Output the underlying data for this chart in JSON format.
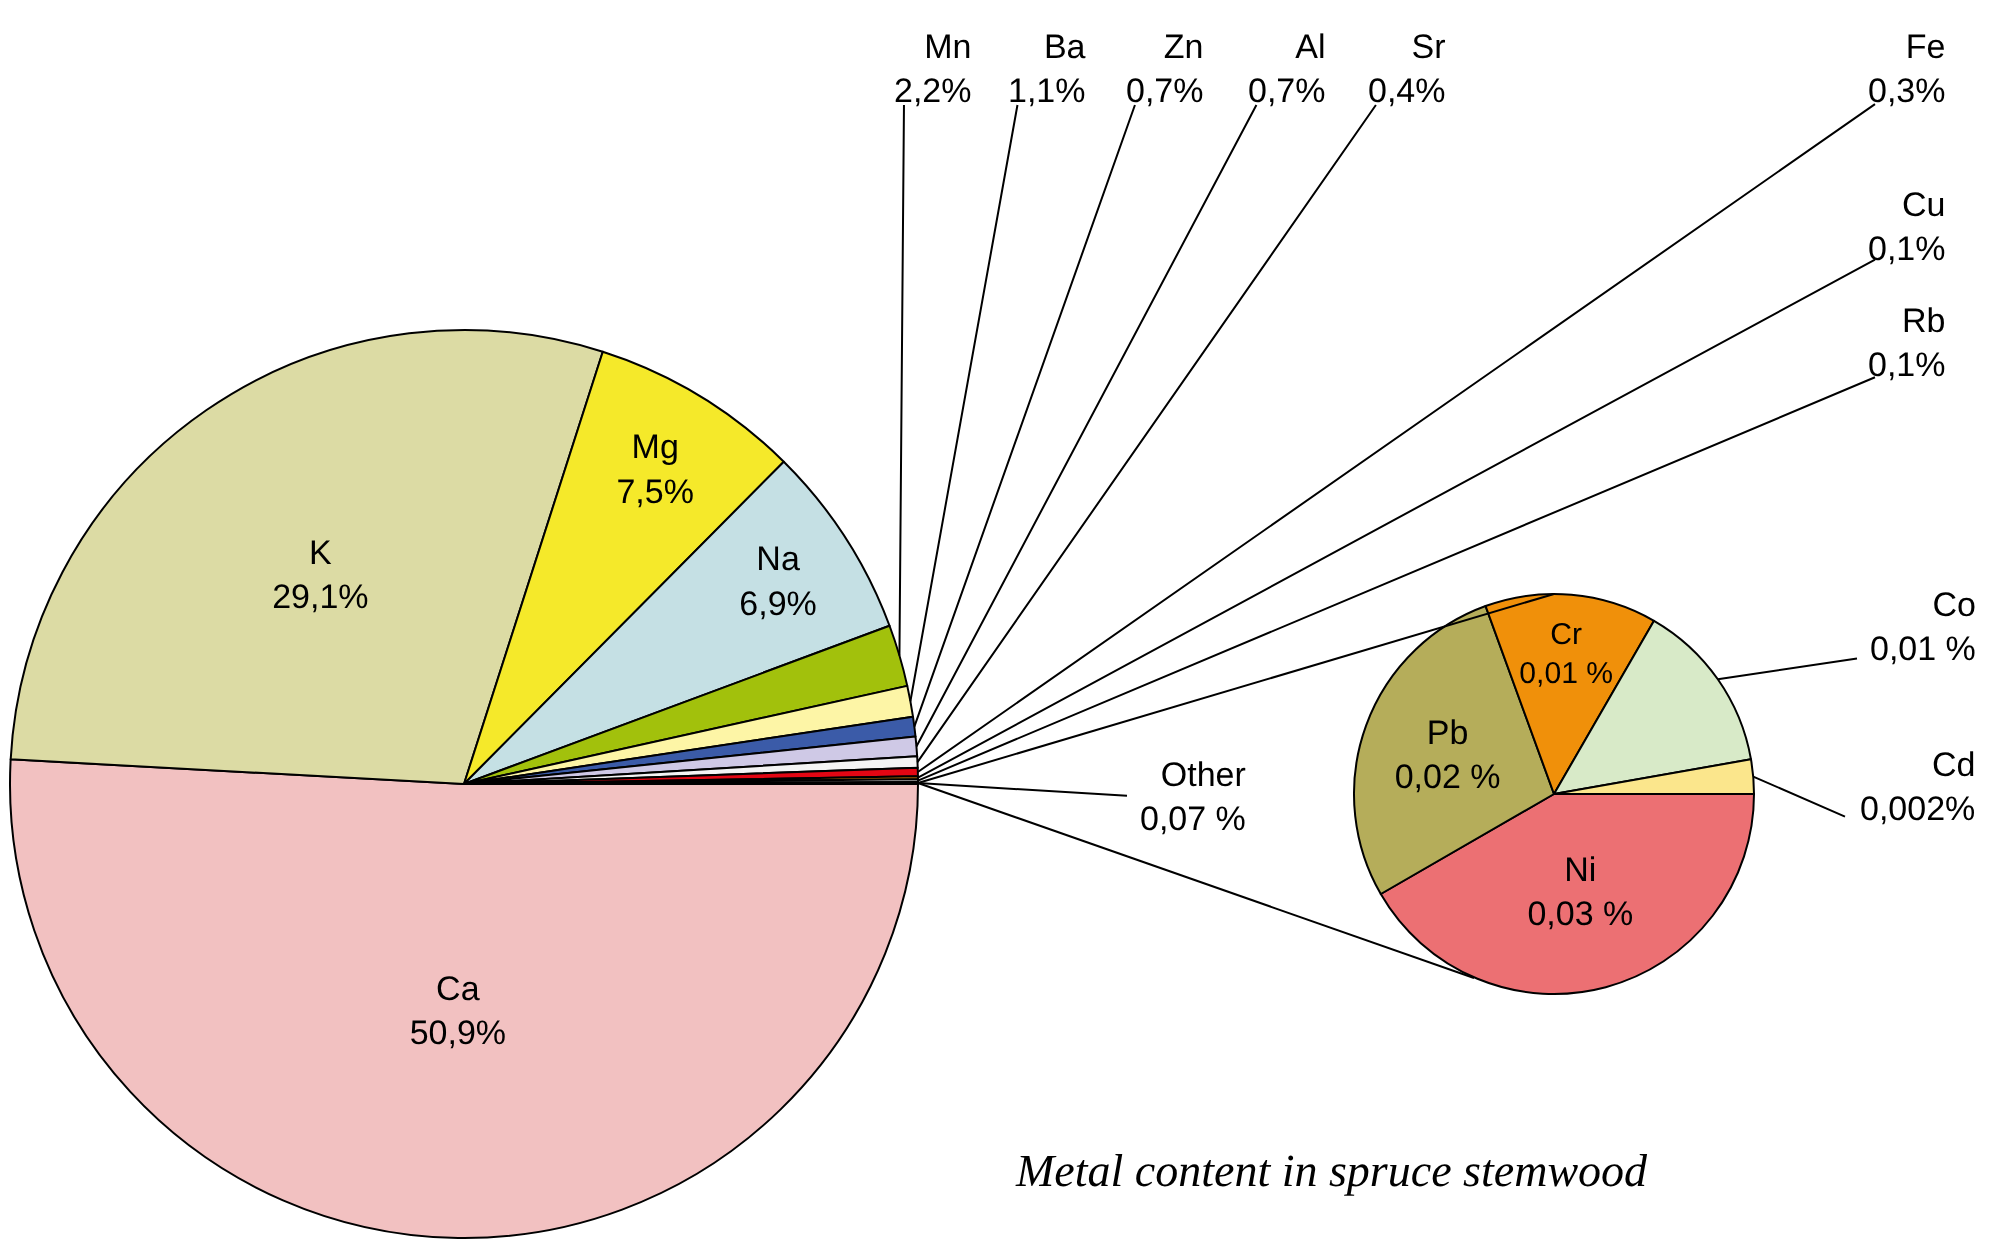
{
  "chart_data": [
    {
      "type": "pie",
      "title": "Metal content in spruce stemwood",
      "categories": [
        "Ca",
        "K",
        "Mg",
        "Na",
        "Mn",
        "Ba",
        "Zn",
        "Al",
        "Sr",
        "Fe",
        "Cu",
        "Rb",
        "Other"
      ],
      "values": [
        50.9,
        29.1,
        7.5,
        6.9,
        2.2,
        1.1,
        0.7,
        0.7,
        0.4,
        0.3,
        0.1,
        0.1,
        0.07
      ],
      "value_labels": [
        "50,9%",
        "29,1%",
        "7,5%",
        "6,9%",
        "2,2%",
        "1,1%",
        "0,7%",
        "0,7%",
        "0,4%",
        "0,3%",
        "0,1%",
        "0,1%",
        "0,07 %"
      ],
      "colors": [
        "#f2c1c1",
        "#dcdba4",
        "#f5e92a",
        "#c5e0e4",
        "#a2c10c",
        "#fdf5a6",
        "#3b5ba8",
        "#cfc9e6",
        "#f4f4f4",
        "#e30613",
        "#f28c00",
        "#ffffff",
        "#66c6cc"
      ]
    },
    {
      "type": "pie",
      "categories": [
        "Ni",
        "Pb",
        "Cr",
        "Co",
        "Cd"
      ],
      "values": [
        0.03,
        0.02,
        0.01,
        0.01,
        0.002
      ],
      "value_labels": [
        "0,03 %",
        "0,02 %",
        "0,01 %",
        "0,01 %",
        "0,002%"
      ],
      "colors": [
        "#ec7073",
        "#b5ad5a",
        "#f0900a",
        "#d8eac8",
        "#fbe68c"
      ]
    }
  ]
}
